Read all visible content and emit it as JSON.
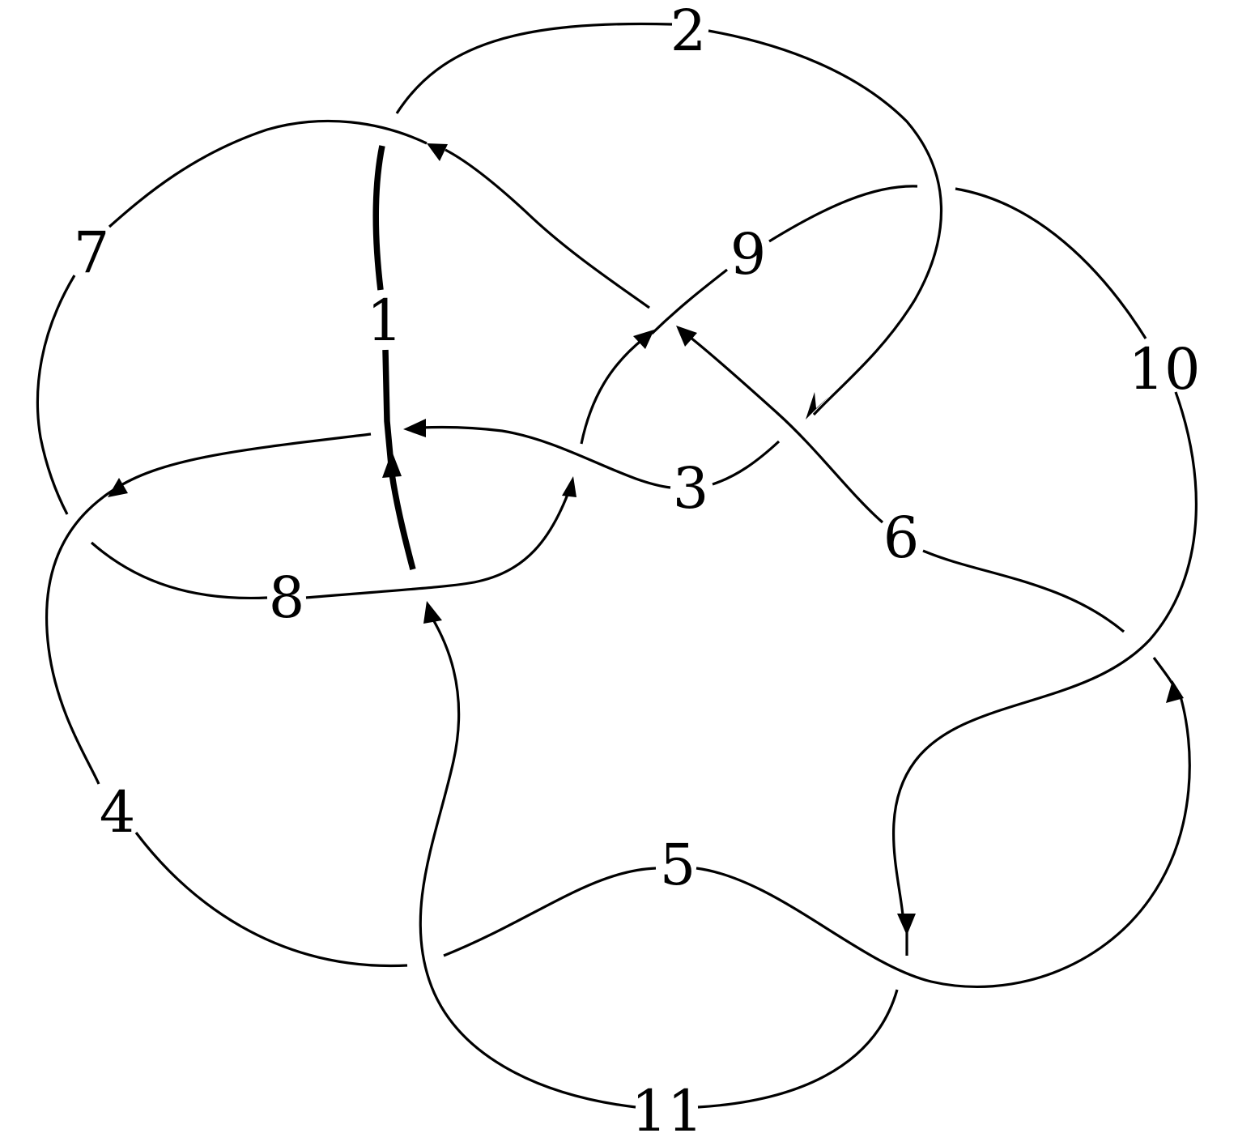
{
  "diagram": {
    "type": "knot-diagram",
    "crossings": 11,
    "highlighted_arc": "1",
    "arcs": [
      {
        "label": "1"
      },
      {
        "label": "2"
      },
      {
        "label": "3"
      },
      {
        "label": "4"
      },
      {
        "label": "5"
      },
      {
        "label": "6"
      },
      {
        "label": "7"
      },
      {
        "label": "8"
      },
      {
        "label": "9"
      },
      {
        "label": "10"
      },
      {
        "label": "11"
      }
    ]
  }
}
